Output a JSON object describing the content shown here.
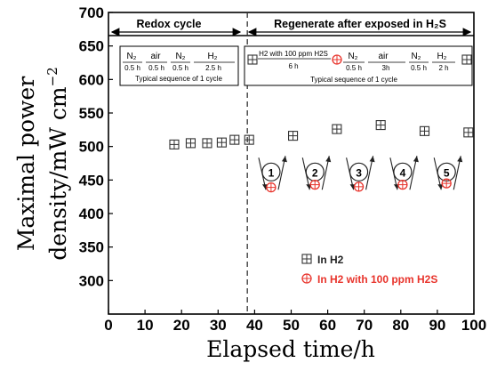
{
  "chart_data": {
    "type": "scatter",
    "xlabel": "Elapsed time/h",
    "ylabel_line1": "Maximal power",
    "ylabel_line2": "density/mW cm",
    "ylabel_sup": "−2",
    "xlim": [
      0,
      100
    ],
    "ylim": [
      250,
      700
    ],
    "xticks": [
      "0",
      "10",
      "20",
      "30",
      "40",
      "50",
      "60",
      "70",
      "80",
      "90",
      "100"
    ],
    "yticks": [
      "300",
      "350",
      "400",
      "450",
      "500",
      "550",
      "600",
      "650",
      "700"
    ],
    "series": [
      {
        "name": "In H2",
        "color": "#333333",
        "marker": "square-plus",
        "points": [
          {
            "x": 18,
            "y": 503
          },
          {
            "x": 22.5,
            "y": 505
          },
          {
            "x": 27,
            "y": 505
          },
          {
            "x": 31,
            "y": 506
          },
          {
            "x": 34.5,
            "y": 510
          },
          {
            "x": 38.5,
            "y": 510
          },
          {
            "x": 50.5,
            "y": 516
          },
          {
            "x": 62.5,
            "y": 526
          },
          {
            "x": 74.5,
            "y": 532
          },
          {
            "x": 86.5,
            "y": 523
          },
          {
            "x": 98.5,
            "y": 521
          }
        ]
      },
      {
        "name": "In H2 with 100 ppm H2S",
        "color": "#e8332b",
        "marker": "circle-plus",
        "points": [
          {
            "x": 44.5,
            "y": 439
          },
          {
            "x": 56.5,
            "y": 443
          },
          {
            "x": 68.5,
            "y": 440
          },
          {
            "x": 80.5,
            "y": 443
          },
          {
            "x": 92.5,
            "y": 445
          }
        ]
      }
    ],
    "regions": {
      "left_title": "Redox cycle",
      "right_title": "Regenerate after exposed in H₂S",
      "divider_x": 38
    },
    "left_box": {
      "caption": "Typical sequence of 1 cycle",
      "gases": [
        "N₂",
        "air",
        "N₂",
        "H₂"
      ],
      "durations": [
        "0.5 h",
        "0.5 h",
        "0.5 h",
        "2.5 h"
      ]
    },
    "right_box": {
      "caption": "Typical sequence of 1 cycle",
      "gases": [
        "H2 with 100 ppm H2S",
        "N₂",
        "air",
        "N₂",
        "H₂"
      ],
      "durations": [
        "6 h",
        "0.5 h",
        "3h",
        "0.5 h",
        "2 h"
      ]
    },
    "cycles": [
      "1",
      "2",
      "3",
      "4",
      "5"
    ],
    "cycle_x": [
      45,
      57,
      69,
      81,
      93
    ],
    "legend_position": "bottom-right"
  }
}
